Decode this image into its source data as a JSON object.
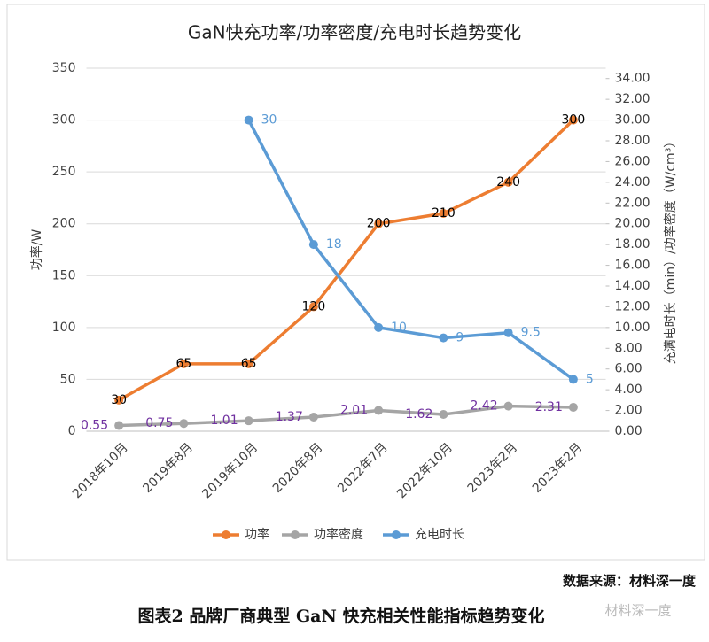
{
  "chart_data": {
    "type": "line",
    "title": "GaN快充功率/功率密度/充电时长趋势变化",
    "y_label": "功率/W",
    "y2_label": "充满电时长（min）/功率密度（W/cm³）",
    "categories": [
      "2018年10月",
      "2019年8月",
      "2019年10月",
      "2020年8月",
      "2022年7月",
      "2022年10月",
      "2023年2月",
      "2023年2月"
    ],
    "series": [
      {
        "name": "功率",
        "color": "#ed7d31",
        "values": [
          30,
          65,
          65,
          120,
          200,
          210,
          240,
          300
        ]
      },
      {
        "name": "功率密度",
        "color": "#a5a5a5",
        "axis": "y2",
        "values": [
          0.55,
          0.75,
          1.01,
          1.37,
          2.01,
          1.62,
          2.42,
          2.31
        ]
      },
      {
        "name": "充电时长",
        "color": "#5b9bd5",
        "axis": "y2",
        "values": [
          null,
          null,
          30,
          18,
          10,
          9,
          9.5,
          5
        ]
      }
    ],
    "ylim": [
      0,
      350
    ],
    "yticks": [
      0,
      50,
      100,
      150,
      200,
      250,
      300,
      350
    ],
    "y2lim": [
      0,
      35
    ],
    "y2ticks": [
      {
        "value": 0,
        "label": "0.00"
      },
      {
        "value": 2,
        "label": "2.00"
      },
      {
        "value": 4,
        "label": "4.00"
      },
      {
        "value": 6,
        "label": "6.00"
      },
      {
        "value": 8,
        "label": "8.00"
      },
      {
        "value": 10,
        "label": "10.00"
      },
      {
        "value": 12,
        "label": "12.00"
      },
      {
        "value": 14,
        "label": "14.00"
      },
      {
        "value": 16,
        "label": "16.00"
      },
      {
        "value": 18,
        "label": "18.00"
      },
      {
        "value": 20,
        "label": "20.00"
      },
      {
        "value": 22,
        "label": "22.00"
      },
      {
        "value": 24,
        "label": "24.00"
      },
      {
        "value": 26,
        "label": "26.00"
      },
      {
        "value": 28,
        "label": "28.00"
      },
      {
        "value": 30,
        "label": "30.00"
      },
      {
        "value": 32,
        "label": "32.00"
      },
      {
        "value": 34,
        "label": "34.00"
      }
    ],
    "grid": true,
    "legend": "bottom"
  },
  "source": "数据来源：材料深一度",
  "caption": "图表2  品牌厂商典型 GaN 快充相关性能指标趋势变化",
  "watermark": "材料深一度"
}
